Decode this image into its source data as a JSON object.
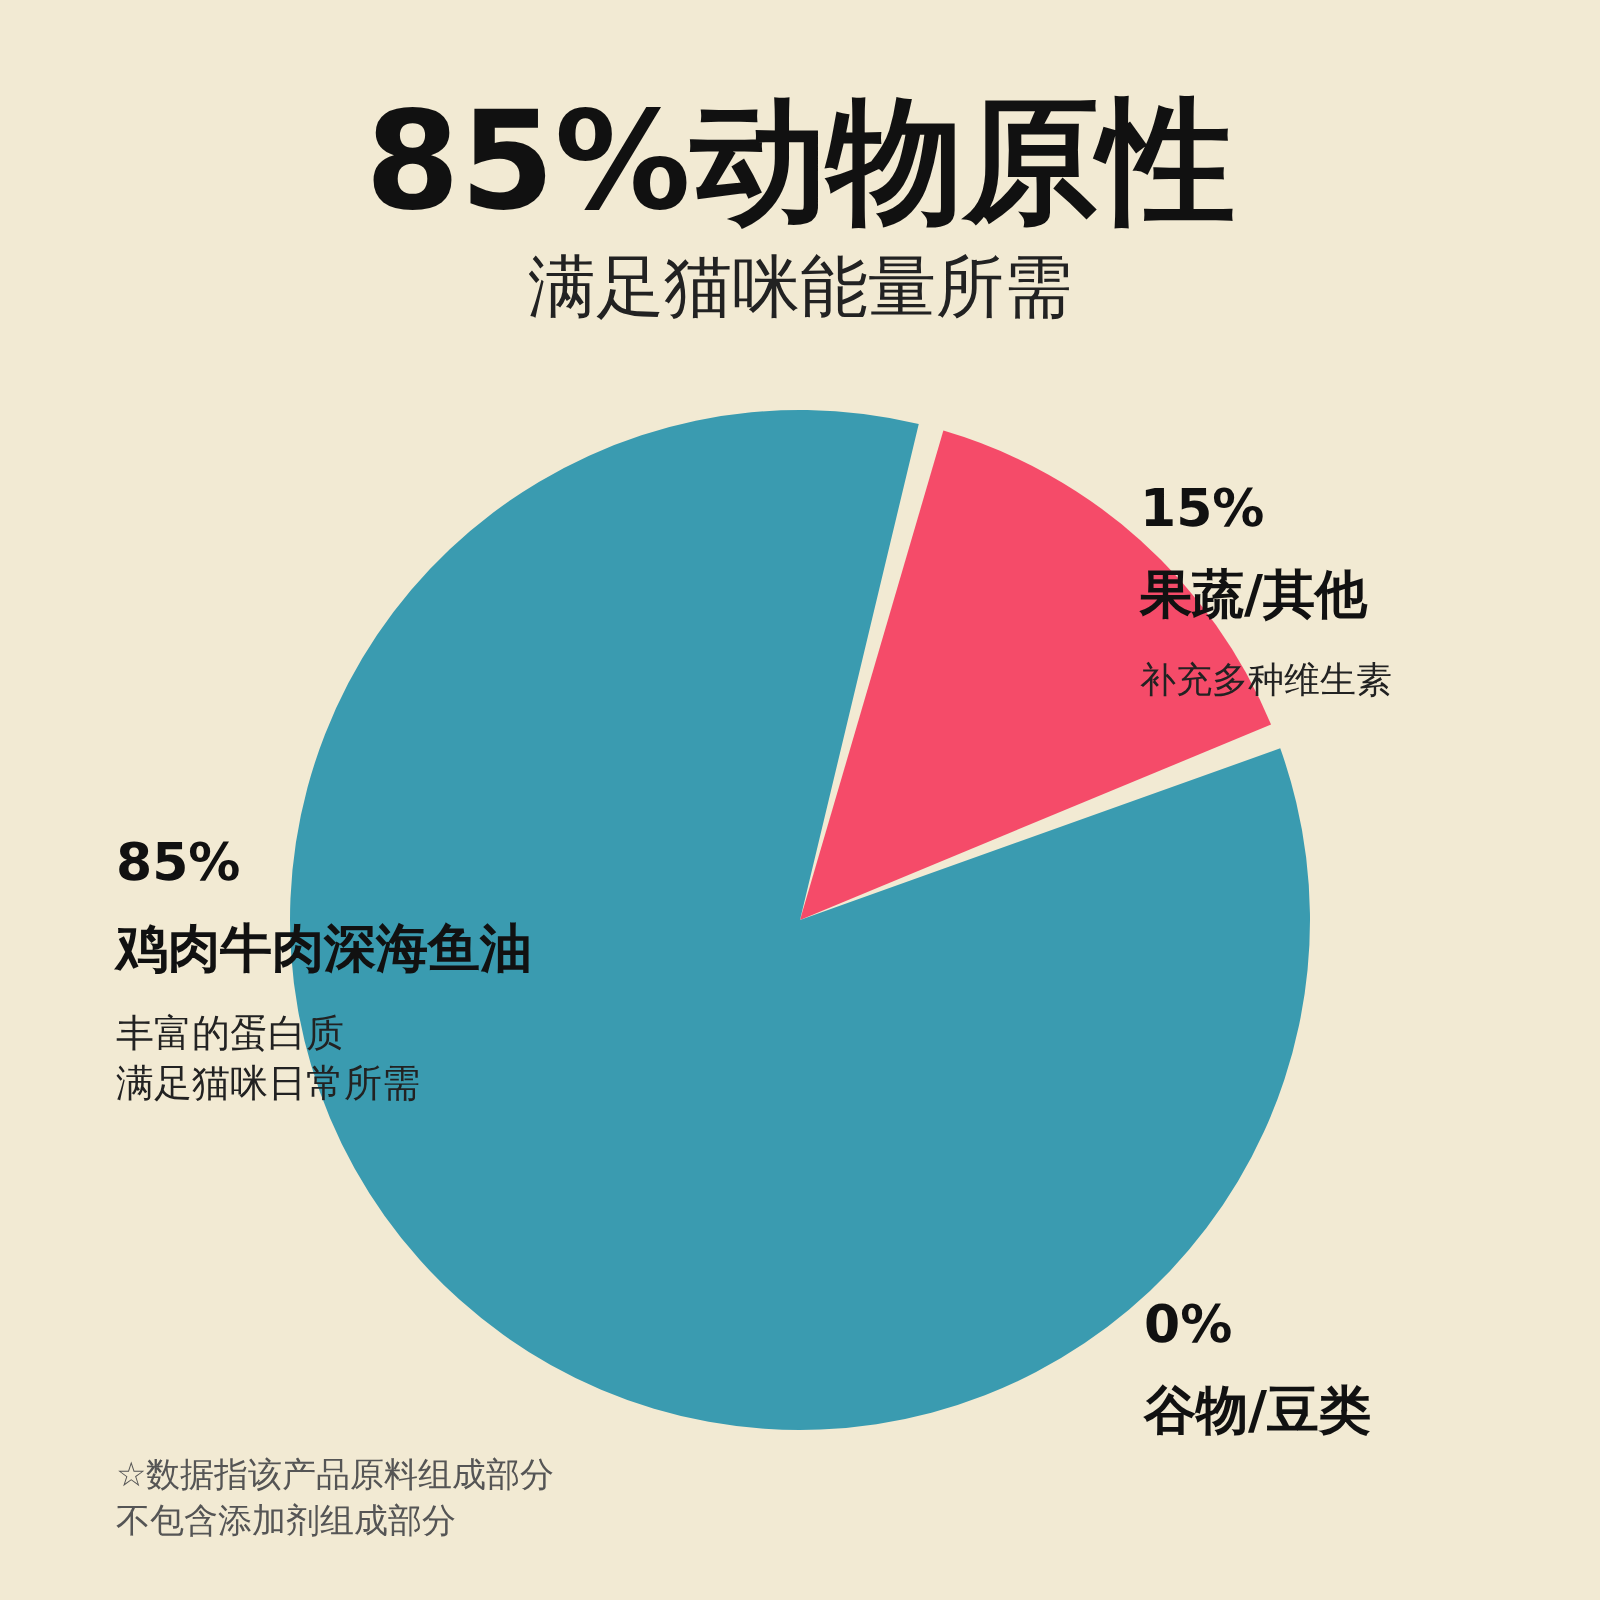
{
  "chart_data": {
    "type": "pie",
    "title": "85%动物原性",
    "subtitle": "满足猫咪能量所需",
    "categories": [
      "果蔬/其他",
      "鸡肉牛肉深海鱼油",
      "谷物/豆类"
    ],
    "values": [
      15,
      85,
      0
    ],
    "colors": [
      "#f54b69",
      "#3a9bb0",
      "#e0b030"
    ],
    "value_labels": [
      "15%",
      "85%",
      "0%"
    ],
    "annotations": [
      "补充多种维生素",
      "丰富的蛋白质",
      "满足猫咪日常所需",
      "☆数据指该产品原料组成部分",
      "不包含添加剂组成部分"
    ],
    "legend": false
  }
}
